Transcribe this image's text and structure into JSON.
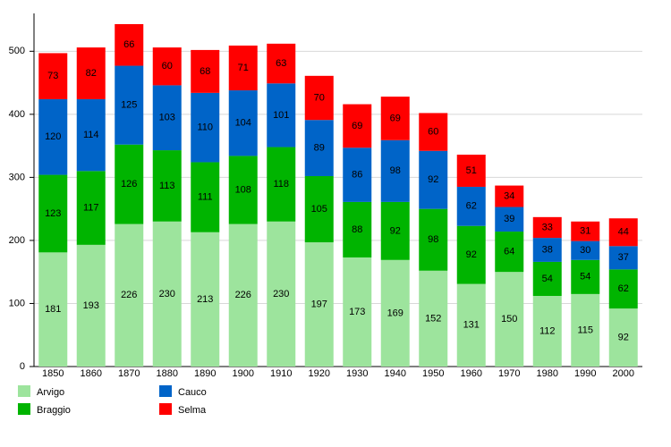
{
  "chart_data": {
    "type": "stacked_bar",
    "categories": [
      "1850",
      "1860",
      "1870",
      "1880",
      "1890",
      "1900",
      "1910",
      "1920",
      "1930",
      "1940",
      "1950",
      "1960",
      "1970",
      "1980",
      "1990",
      "2000"
    ],
    "series": [
      {
        "name": "Arvigo",
        "color": "#9de49d",
        "values": [
          181,
          193,
          226,
          230,
          213,
          226,
          230,
          197,
          173,
          169,
          152,
          131,
          150,
          112,
          115,
          92
        ]
      },
      {
        "name": "Braggio",
        "color": "#00b400",
        "values": [
          123,
          117,
          126,
          113,
          111,
          108,
          118,
          105,
          88,
          92,
          98,
          92,
          64,
          54,
          54,
          62
        ]
      },
      {
        "name": "Cauco",
        "color": "#0064c8",
        "values": [
          120,
          114,
          125,
          103,
          110,
          104,
          101,
          89,
          86,
          98,
          92,
          62,
          39,
          38,
          30,
          37
        ]
      },
      {
        "name": "Selma",
        "color": "#ff0000",
        "values": [
          73,
          82,
          66,
          60,
          68,
          71,
          63,
          70,
          69,
          69,
          60,
          51,
          34,
          33,
          31,
          44
        ]
      }
    ],
    "ylim": [
      0,
      560
    ],
    "yticks": [
      0,
      100,
      200,
      300,
      400,
      500
    ],
    "grid": true
  }
}
